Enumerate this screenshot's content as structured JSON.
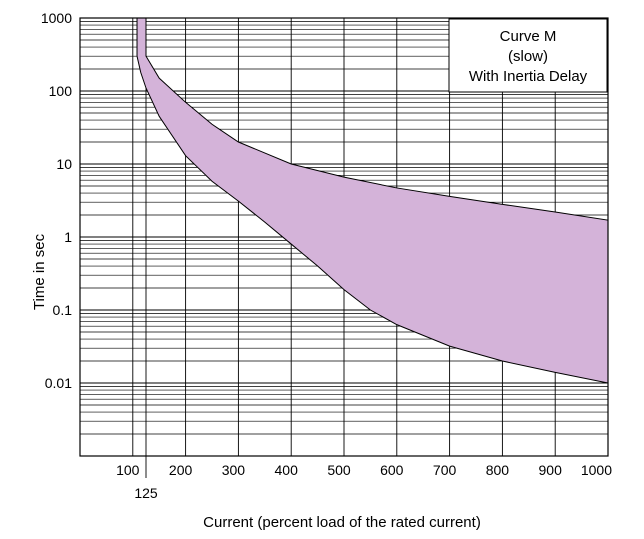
{
  "chart_data": {
    "type": "area",
    "title_lines": [
      "Curve M",
      "(slow)",
      "With Inertia Delay"
    ],
    "xlabel": "Current (percent load of the rated current)",
    "ylabel": "Time in sec",
    "xlim": [
      0,
      1000
    ],
    "ylim": [
      0.001,
      1000
    ],
    "y_scale": "log",
    "x_ticks": [
      100,
      200,
      300,
      400,
      500,
      600,
      700,
      800,
      900,
      1000
    ],
    "x_extra_tick": 125,
    "y_ticks": [
      {
        "value": 1000,
        "label": "1000"
      },
      {
        "value": 100,
        "label": "100"
      },
      {
        "value": 10,
        "label": "10"
      },
      {
        "value": 1,
        "label": "1"
      },
      {
        "value": 0.1,
        "label": "0.1"
      },
      {
        "value": 0.01,
        "label": "0.01"
      }
    ],
    "grid": true,
    "band_color": "#d4b3d9",
    "series": [
      {
        "role": "upper",
        "x": [
          125,
          125,
          150,
          200,
          250,
          300,
          400,
          500,
          600,
          700,
          800,
          900,
          1000
        ],
        "y": [
          1000,
          300,
          150,
          70,
          35,
          20,
          10,
          6.6,
          4.7,
          3.6,
          2.8,
          2.2,
          1.7
        ]
      },
      {
        "role": "lower",
        "x": [
          108,
          108,
          115,
          125,
          150,
          200,
          250,
          300,
          350,
          400,
          450,
          500,
          550,
          600,
          700,
          800,
          900,
          1000
        ],
        "y": [
          1000,
          300,
          180,
          110,
          45,
          13,
          5.8,
          3.1,
          1.6,
          0.8,
          0.4,
          0.19,
          0.1,
          0.063,
          0.032,
          0.02,
          0.014,
          0.01
        ]
      }
    ]
  }
}
